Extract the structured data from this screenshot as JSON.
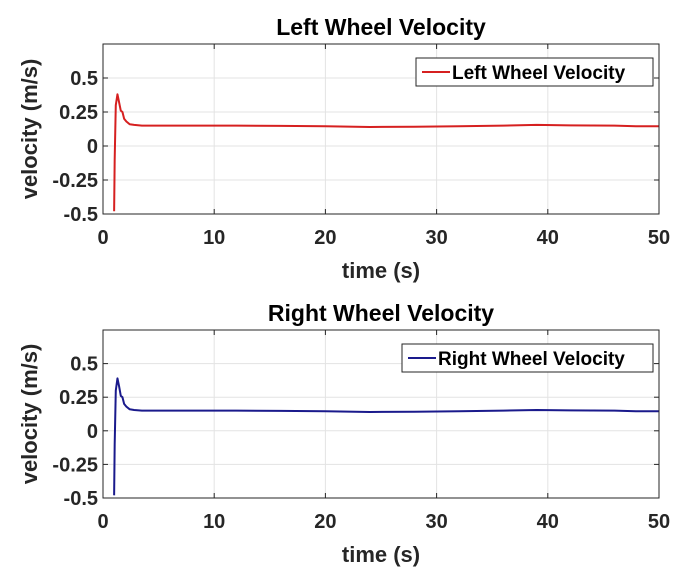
{
  "chart_data": [
    {
      "type": "line",
      "title": "Left Wheel Velocity",
      "xlabel": "time (s)",
      "ylabel": "velocity (m/s)",
      "xlim": [
        0,
        50
      ],
      "ylim": [
        -0.5,
        0.75
      ],
      "xticks": [
        0,
        10,
        20,
        30,
        40,
        50
      ],
      "xtick_labels": [
        "0",
        "10",
        "20",
        "30",
        "40",
        "50"
      ],
      "yticks": [
        -0.5,
        -0.25,
        0,
        0.25,
        0.5
      ],
      "ytick_labels": [
        "-0.5",
        "-0.25",
        "0",
        "0.25",
        "0.5"
      ],
      "grid": true,
      "legend_position": "top-right",
      "series": [
        {
          "name": "Left Wheel Velocity",
          "color": "#d62020",
          "x": [
            1.0,
            1.05,
            1.15,
            1.3,
            1.45,
            1.6,
            1.75,
            1.9,
            2.1,
            2.4,
            2.8,
            3.5,
            5,
            8,
            12,
            16,
            20,
            24,
            28,
            32,
            36,
            39,
            42,
            46,
            48,
            50
          ],
          "y": [
            -0.48,
            -0.1,
            0.3,
            0.38,
            0.32,
            0.26,
            0.25,
            0.2,
            0.18,
            0.16,
            0.155,
            0.15,
            0.15,
            0.15,
            0.15,
            0.148,
            0.145,
            0.14,
            0.142,
            0.145,
            0.15,
            0.155,
            0.152,
            0.15,
            0.145,
            0.145
          ]
        }
      ]
    },
    {
      "type": "line",
      "title": "Right Wheel Velocity",
      "xlabel": "time (s)",
      "ylabel": "velocity (m/s)",
      "xlim": [
        0,
        50
      ],
      "ylim": [
        -0.5,
        0.75
      ],
      "xticks": [
        0,
        10,
        20,
        30,
        40,
        50
      ],
      "xtick_labels": [
        "0",
        "10",
        "20",
        "30",
        "40",
        "50"
      ],
      "yticks": [
        -0.5,
        -0.25,
        0,
        0.25,
        0.5
      ],
      "ytick_labels": [
        "-0.5",
        "-0.25",
        "0",
        "0.25",
        "0.5"
      ],
      "grid": true,
      "legend_position": "top-right",
      "series": [
        {
          "name": "Right Wheel Velocity",
          "color": "#1a1a8c",
          "x": [
            1.0,
            1.05,
            1.15,
            1.3,
            1.45,
            1.6,
            1.75,
            1.9,
            2.1,
            2.4,
            2.8,
            3.5,
            5,
            8,
            12,
            16,
            20,
            24,
            28,
            32,
            36,
            39,
            42,
            46,
            48,
            50
          ],
          "y": [
            -0.48,
            -0.1,
            0.3,
            0.39,
            0.33,
            0.26,
            0.25,
            0.2,
            0.18,
            0.16,
            0.155,
            0.15,
            0.15,
            0.15,
            0.15,
            0.148,
            0.145,
            0.14,
            0.142,
            0.145,
            0.15,
            0.155,
            0.152,
            0.15,
            0.145,
            0.145
          ]
        }
      ]
    }
  ]
}
